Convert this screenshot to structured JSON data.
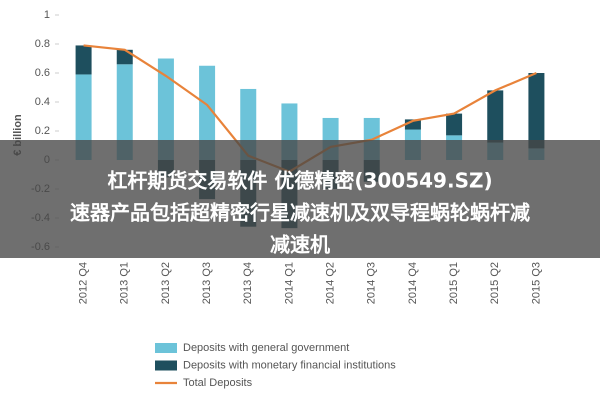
{
  "chart_data": {
    "type": "stacked-bar-line",
    "y_label": "€ billion",
    "categories": [
      "2012 Q4",
      "2013 Q1",
      "2013 Q2",
      "2013 Q3",
      "2013 Q4",
      "2014 Q1",
      "2014 Q2",
      "2014 Q3",
      "2014 Q4",
      "2015 Q1",
      "2015 Q2",
      "2015 Q3"
    ],
    "series": [
      {
        "name": "Deposits with general government",
        "color": "#6cc3d9",
        "kind": "bar",
        "values": [
          0.59,
          0.66,
          0.7,
          0.65,
          0.49,
          0.39,
          0.29,
          0.29,
          0.21,
          0.17,
          0.12,
          0.08
        ]
      },
      {
        "name": "Deposits with monetary financial institutions",
        "color": "#1e4f5e",
        "kind": "bar",
        "values": [
          0.2,
          0.1,
          -0.12,
          -0.27,
          -0.46,
          -0.47,
          -0.2,
          -0.15,
          0.07,
          0.15,
          0.36,
          0.52
        ]
      },
      {
        "name": "Total Deposits",
        "color": "#e8833a",
        "kind": "line",
        "values": [
          0.79,
          0.76,
          0.58,
          0.38,
          0.03,
          -0.08,
          0.09,
          0.14,
          0.27,
          0.32,
          0.48,
          0.6
        ]
      }
    ],
    "ylim": [
      -0.6,
      1
    ],
    "yticks": [
      -0.6,
      -0.4,
      -0.2,
      0,
      0.2,
      0.4,
      0.6,
      0.8,
      1
    ],
    "grid": false
  },
  "overlay": {
    "lines": [
      "杠杆期货交易软件 优德精密(300549.SZ)",
      "速器产品包括超精密行星减速机及双导程蜗轮蜗杆减",
      "减速机"
    ]
  }
}
